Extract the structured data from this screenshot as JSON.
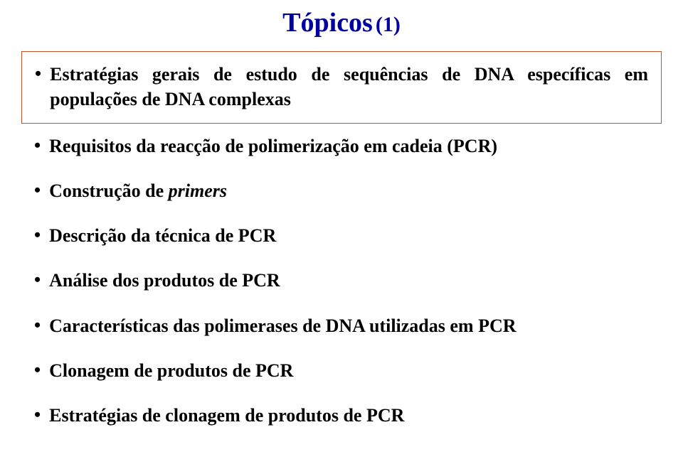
{
  "title": {
    "main": "Tópicos",
    "sub": "(1)"
  },
  "boxed_item": {
    "text_part1": "Estratégias gerais de estudo de sequências de DNA específicas em",
    "text_part2": "populações de DNA complexas"
  },
  "items": [
    {
      "text": "Requisitos da reacção de polimerização em cadeia (PCR)"
    },
    {
      "text_prefix": "Construção de ",
      "text_italic": "primers"
    },
    {
      "text": "Descrição da técnica de PCR"
    },
    {
      "text": "Análise dos produtos de PCR"
    },
    {
      "text": "Características das polimerases de DNA utilizadas em PCR"
    },
    {
      "text": "Clonagem de produtos de PCR"
    },
    {
      "text": "Estratégias de clonagem de produtos de PCR"
    }
  ],
  "colors": {
    "title": "#0000a0",
    "box_border": "#c85028",
    "text": "#000000",
    "background": "#ffffff"
  },
  "typography": {
    "title_main_fontsize": 38,
    "title_sub_fontsize": 30,
    "bullet_fontsize": 26,
    "font_family": "Times New Roman"
  }
}
